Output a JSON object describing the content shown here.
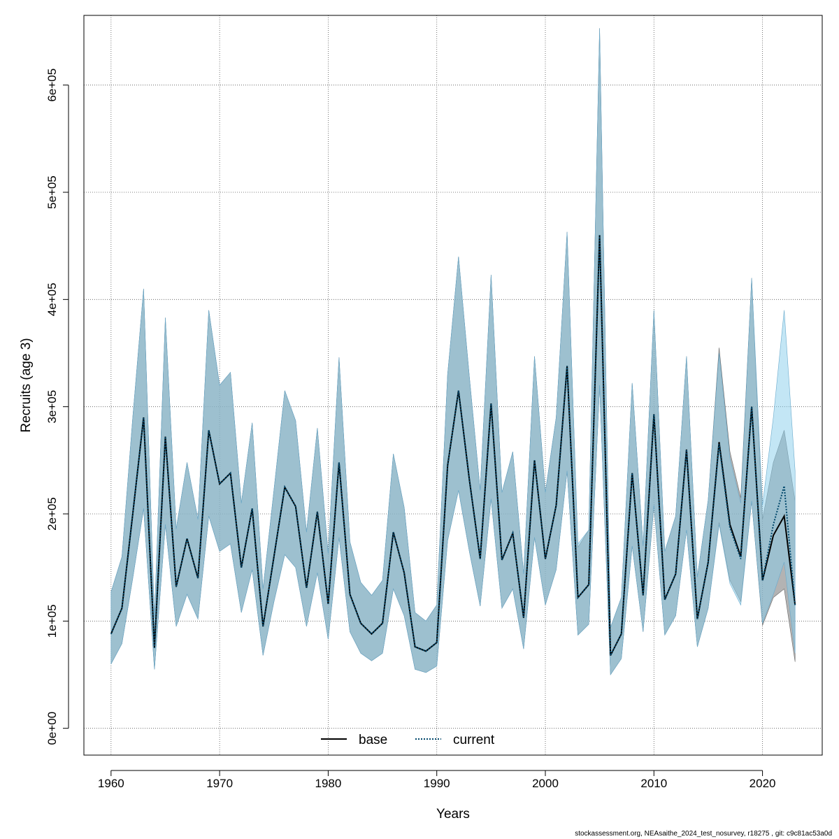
{
  "chart_data": {
    "type": "line",
    "xlabel": "Years",
    "ylabel": "Recruits (age 3)",
    "xlim": [
      1957.5,
      1925.5
    ],
    "ylim": [
      -25000,
      665000
    ],
    "xticks": [
      1960,
      1970,
      1980,
      1990,
      2000,
      2010,
      2020
    ],
    "yticks": [
      0,
      100000,
      200000,
      300000,
      400000,
      500000,
      600000
    ],
    "ytick_labels": [
      "0e+00",
      "1e+05",
      "2e+05",
      "3e+05",
      "4e+05",
      "5e+05",
      "6e+05"
    ],
    "grid": true,
    "legend": {
      "position": "bottom-center",
      "entries": [
        "base",
        "current"
      ]
    },
    "x": [
      1960,
      1961,
      1962,
      1963,
      1964,
      1965,
      1966,
      1967,
      1968,
      1969,
      1970,
      1971,
      1972,
      1973,
      1974,
      1975,
      1976,
      1977,
      1978,
      1979,
      1980,
      1981,
      1982,
      1983,
      1984,
      1985,
      1986,
      1987,
      1988,
      1989,
      1990,
      1991,
      1992,
      1993,
      1994,
      1995,
      1996,
      1997,
      1998,
      1999,
      2000,
      2001,
      2002,
      2003,
      2004,
      2005,
      2006,
      2007,
      2008,
      2009,
      2010,
      2011,
      2012,
      2013,
      2014,
      2015,
      2016,
      2017,
      2018,
      2019,
      2020,
      2021,
      2022,
      2023
    ],
    "series": [
      {
        "name": "base",
        "values": [
          88000,
          112000,
          200000,
          290000,
          75000,
          272000,
          132000,
          177000,
          140000,
          278000,
          228000,
          238000,
          150000,
          205000,
          95000,
          160000,
          225000,
          207000,
          131000,
          202000,
          116000,
          248000,
          125000,
          98000,
          88000,
          98000,
          183000,
          145000,
          76000,
          72000,
          80000,
          245000,
          315000,
          232000,
          158000,
          303000,
          157000,
          182000,
          103000,
          250000,
          158000,
          208000,
          338000,
          122000,
          134000,
          460000,
          68000,
          88000,
          238000,
          124000,
          293000,
          120000,
          144000,
          260000,
          102000,
          155000,
          267000,
          190000,
          160000,
          300000,
          138000,
          180000,
          198000,
          115000
        ],
        "lower": [
          60000,
          79000,
          140000,
          205000,
          55000,
          190000,
          95000,
          125000,
          102000,
          198000,
          165000,
          172000,
          108000,
          148000,
          68000,
          118000,
          162000,
          150000,
          95000,
          145000,
          83000,
          178000,
          90000,
          70000,
          63000,
          70000,
          130000,
          105000,
          55000,
          52000,
          58000,
          175000,
          222000,
          165000,
          114000,
          214000,
          112000,
          130000,
          74000,
          178000,
          115000,
          148000,
          240000,
          87000,
          97000,
          320000,
          50000,
          65000,
          170000,
          90000,
          208000,
          87000,
          105000,
          185000,
          76000,
          112000,
          192000,
          138000,
          118000,
          212000,
          96000,
          122000,
          130000,
          62000
        ],
        "upper": [
          127000,
          160000,
          290000,
          410000,
          103000,
          383000,
          186000,
          248000,
          195000,
          390000,
          320000,
          332000,
          210000,
          285000,
          130000,
          222000,
          315000,
          287000,
          183000,
          280000,
          163000,
          346000,
          174000,
          136000,
          124000,
          138000,
          256000,
          206000,
          108000,
          100000,
          115000,
          330000,
          440000,
          328000,
          222000,
          423000,
          220000,
          258000,
          144000,
          347000,
          220000,
          290000,
          463000,
          169000,
          185000,
          653000,
          94000,
          122000,
          322000,
          170000,
          390000,
          165000,
          198000,
          347000,
          141000,
          213000,
          355000,
          258000,
          215000,
          420000,
          195000,
          248000,
          278000,
          212000
        ]
      },
      {
        "name": "current",
        "values": [
          88000,
          112000,
          200000,
          290000,
          75000,
          272000,
          132000,
          177000,
          140000,
          278000,
          228000,
          238000,
          150000,
          205000,
          95000,
          160000,
          225000,
          207000,
          131000,
          202000,
          116000,
          248000,
          125000,
          98000,
          88000,
          98000,
          183000,
          145000,
          76000,
          72000,
          80000,
          245000,
          315000,
          232000,
          158000,
          303000,
          157000,
          182000,
          103000,
          250000,
          158000,
          208000,
          338000,
          122000,
          134000,
          460000,
          68000,
          88000,
          238000,
          124000,
          293000,
          120000,
          144000,
          260000,
          102000,
          155000,
          265000,
          187000,
          158000,
          300000,
          138000,
          190000,
          226000,
          115000
        ],
        "lower": [
          60000,
          79000,
          140000,
          205000,
          55000,
          190000,
          95000,
          125000,
          102000,
          198000,
          165000,
          172000,
          108000,
          148000,
          68000,
          118000,
          162000,
          150000,
          95000,
          145000,
          83000,
          178000,
          90000,
          70000,
          63000,
          70000,
          130000,
          105000,
          55000,
          52000,
          58000,
          175000,
          222000,
          165000,
          114000,
          214000,
          112000,
          130000,
          74000,
          178000,
          115000,
          148000,
          240000,
          87000,
          97000,
          320000,
          50000,
          65000,
          170000,
          90000,
          208000,
          87000,
          105000,
          185000,
          76000,
          112000,
          190000,
          135000,
          115000,
          212000,
          98000,
          125000,
          155000,
          70000
        ],
        "upper": [
          127000,
          160000,
          290000,
          410000,
          103000,
          383000,
          186000,
          248000,
          195000,
          390000,
          320000,
          332000,
          210000,
          285000,
          130000,
          222000,
          315000,
          287000,
          183000,
          280000,
          163000,
          346000,
          174000,
          136000,
          124000,
          138000,
          256000,
          206000,
          108000,
          100000,
          115000,
          330000,
          440000,
          328000,
          222000,
          423000,
          220000,
          258000,
          144000,
          347000,
          220000,
          290000,
          463000,
          172000,
          185000,
          653000,
          94000,
          122000,
          322000,
          170000,
          390000,
          165000,
          198000,
          347000,
          141000,
          213000,
          350000,
          252000,
          210000,
          420000,
          208000,
          290000,
          390000,
          240000
        ]
      }
    ],
    "colors": {
      "base_band": "#8a8a8a",
      "current_band": "#87ceeb",
      "base_line": "#000000",
      "current_line": "#00476b",
      "grid": "#555555"
    }
  },
  "footer": "stockassessment.org, NEAsaithe_2024_test_nosurvey, r18275 , git: c9c81ac53a0d"
}
